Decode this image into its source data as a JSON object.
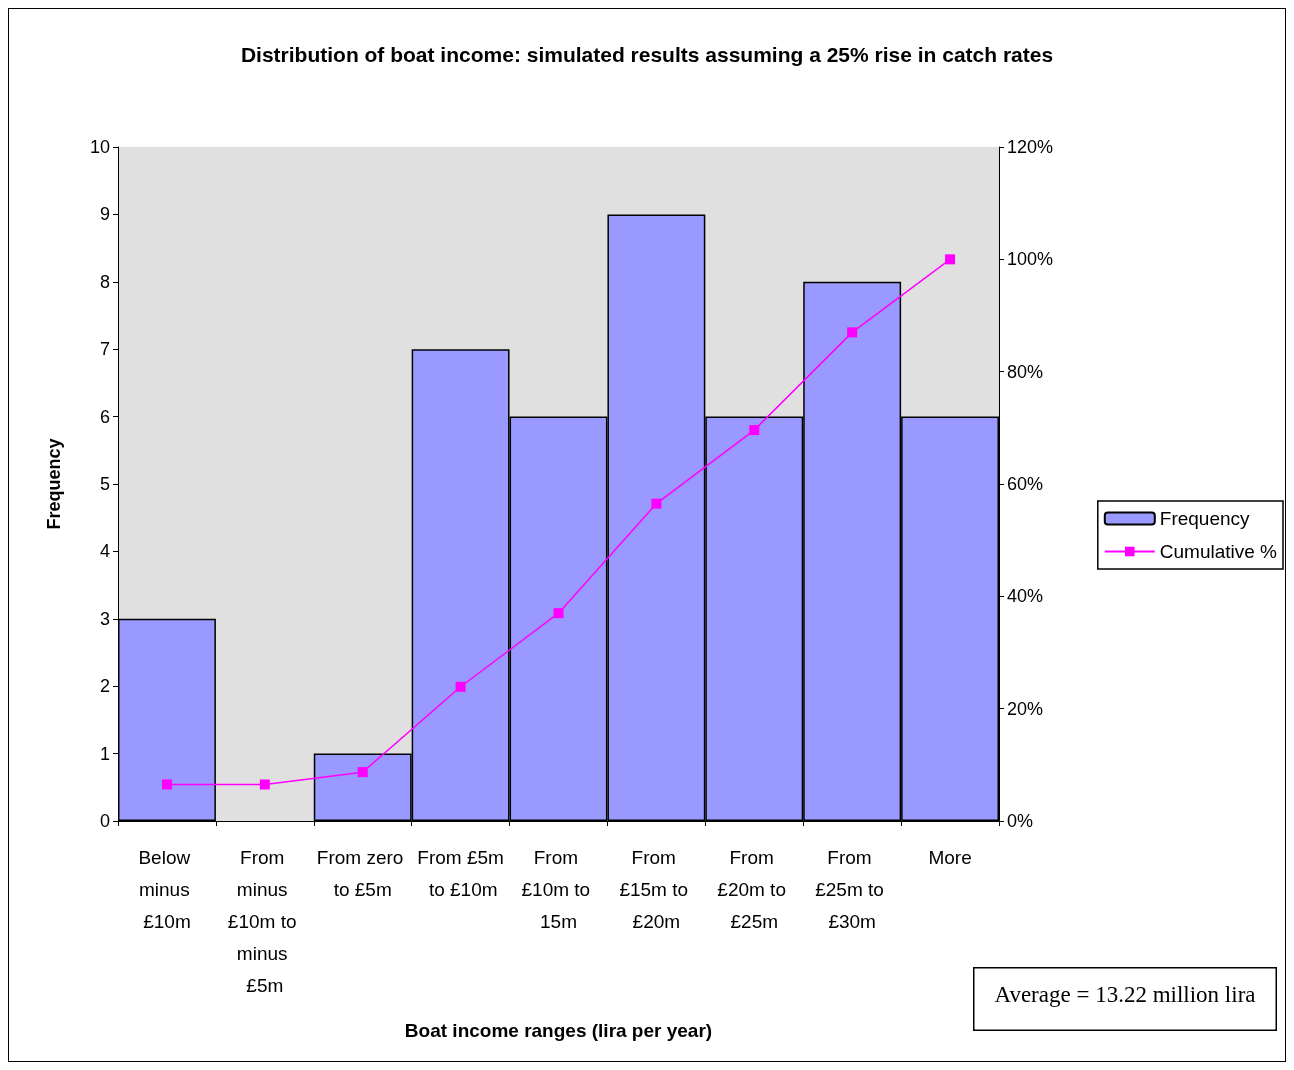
{
  "chart_data": {
    "type": "bar",
    "title": "Distribution of boat income: simulated results assuming a 25% rise in catch rates",
    "xlabel": "Boat income ranges (lira per year)",
    "ylabel": "Frequency",
    "categories": [
      "Below minus £10m",
      "From minus £10m to minus £5m",
      "From zero to £5m",
      "From £5m to £10m",
      "From £10m to 15m",
      "From £15m to £20m",
      "From £20m to £25m",
      "From £25m to £30m",
      "More"
    ],
    "series": [
      {
        "name": "Frequency",
        "color": "#9999ff",
        "values": [
          3,
          0,
          1,
          7,
          6,
          9,
          6,
          8,
          6
        ]
      },
      {
        "name": "Cumulative %",
        "type": "line",
        "axis": "y2",
        "color": "#ff00ff",
        "marker": "square",
        "line_style": "solid",
        "values": [
          6.5,
          6.5,
          8.7,
          23.9,
          37.0,
          56.5,
          69.6,
          87.0,
          100
        ]
      }
    ],
    "ylim": [
      0,
      10
    ],
    "yticks": [
      0,
      1,
      2,
      3,
      4,
      5,
      6,
      7,
      8,
      9,
      10
    ],
    "y2lim": [
      0,
      120
    ],
    "y2ticks": [
      {
        "value": 0,
        "label": "0%"
      },
      {
        "value": 20,
        "label": "20%"
      },
      {
        "value": 40,
        "label": "40%"
      },
      {
        "value": 60,
        "label": "60%"
      },
      {
        "value": 80,
        "label": "80%"
      },
      {
        "value": 100,
        "label": "100%"
      },
      {
        "value": 120,
        "label": "120%"
      }
    ],
    "grid": false,
    "legend": "right",
    "annotations": [
      "Average = 13.22 million lira"
    ]
  }
}
